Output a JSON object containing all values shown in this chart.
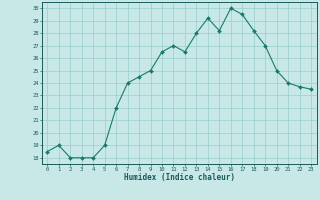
{
  "x": [
    0,
    1,
    2,
    3,
    4,
    5,
    6,
    7,
    8,
    9,
    10,
    11,
    12,
    13,
    14,
    15,
    16,
    17,
    18,
    19,
    20,
    21,
    22,
    23
  ],
  "y": [
    18.5,
    19.0,
    18.0,
    18.0,
    18.0,
    19.0,
    22.0,
    24.0,
    24.5,
    25.0,
    26.5,
    27.0,
    26.5,
    28.0,
    29.2,
    28.2,
    30.0,
    29.5,
    28.2,
    27.0,
    25.0,
    24.0,
    23.7,
    23.5
  ],
  "xlabel": "Humidex (Indice chaleur)",
  "xlim": [
    -0.5,
    23.5
  ],
  "ylim": [
    17.5,
    30.5
  ],
  "yticks": [
    18,
    19,
    20,
    21,
    22,
    23,
    24,
    25,
    26,
    27,
    28,
    29,
    30
  ],
  "xticks": [
    0,
    1,
    2,
    3,
    4,
    5,
    6,
    7,
    8,
    9,
    10,
    11,
    12,
    13,
    14,
    15,
    16,
    17,
    18,
    19,
    20,
    21,
    22,
    23
  ],
  "line_color": "#1a7a6a",
  "marker_color": "#1a7a6a",
  "bg_color": "#c8e8e8",
  "grid_color": "#99cccc",
  "tick_color": "#1a5a5a",
  "label_color": "#1a5a5a"
}
